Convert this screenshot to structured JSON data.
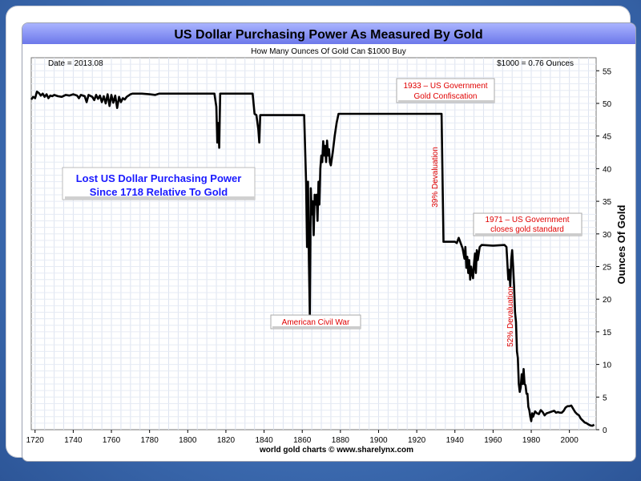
{
  "chart_data": {
    "type": "line",
    "title": "US Dollar Purchasing Power As Measured By Gold",
    "subtitle": "How Many Ounces Of Gold Can $1000 Buy",
    "date_label": "Date = 2013.08",
    "value_label": "$1000 = 0.76 Ounces",
    "ylabel": "Ounces Of Gold",
    "footer": "world gold charts © www.sharelynx.com",
    "xlim": [
      1718,
      2014
    ],
    "ylim": [
      0,
      57
    ],
    "xticks": [
      1720,
      1740,
      1760,
      1780,
      1800,
      1820,
      1840,
      1860,
      1880,
      1900,
      1920,
      1940,
      1960,
      1980,
      2000
    ],
    "yticks": [
      0,
      5,
      10,
      15,
      20,
      25,
      30,
      35,
      40,
      45,
      50,
      55
    ],
    "grid": true,
    "colors": {
      "line": "#000000",
      "title_bar": "#7a86f0",
      "annotation": "#e00000",
      "callout": "#1a1aff"
    },
    "callout": [
      "Lost US Dollar Purchasing Power",
      "Since 1718 Relative To Gold"
    ],
    "annotations": [
      {
        "id": "gold-confiscation",
        "lines": [
          "1933 – US Government",
          "Gold Confiscation"
        ]
      },
      {
        "id": "gold-standard",
        "lines": [
          "1971 – US Government",
          "closes gold standard"
        ]
      },
      {
        "id": "civil-war",
        "lines": [
          "American Civil War"
        ]
      },
      {
        "id": "devaluation-39",
        "lines": [
          "39% Devaluation"
        ]
      },
      {
        "id": "devaluation-52",
        "lines": [
          "52% Devaluation"
        ]
      }
    ],
    "series": [
      {
        "values": [
          [
            1718,
            50.6
          ],
          [
            1719,
            51.0
          ],
          [
            1720,
            50.8
          ],
          [
            1721,
            51.8
          ],
          [
            1722,
            51.6
          ],
          [
            1723,
            51.2
          ],
          [
            1724,
            51.5
          ],
          [
            1725,
            51.0
          ],
          [
            1726,
            51.4
          ],
          [
            1727,
            50.8
          ],
          [
            1728,
            51.2
          ],
          [
            1729,
            51.1
          ],
          [
            1730,
            51.3
          ],
          [
            1732,
            51.1
          ],
          [
            1734,
            51.0
          ],
          [
            1736,
            51.3
          ],
          [
            1738,
            51.2
          ],
          [
            1740,
            51.4
          ],
          [
            1742,
            51.2
          ],
          [
            1743,
            50.8
          ],
          [
            1744,
            51.3
          ],
          [
            1746,
            51.1
          ],
          [
            1747,
            50.2
          ],
          [
            1748,
            51.3
          ],
          [
            1750,
            51.0
          ],
          [
            1751,
            50.5
          ],
          [
            1752,
            51.3
          ],
          [
            1753,
            50.7
          ],
          [
            1754,
            51.2
          ],
          [
            1755,
            50.2
          ],
          [
            1756,
            51.1
          ],
          [
            1757,
            50.0
          ],
          [
            1758,
            51.4
          ],
          [
            1759,
            49.6
          ],
          [
            1760,
            51.3
          ],
          [
            1761,
            50.1
          ],
          [
            1762,
            51.2
          ],
          [
            1763,
            49.3
          ],
          [
            1764,
            51.0
          ],
          [
            1765,
            50.2
          ],
          [
            1766,
            50.8
          ],
          [
            1767,
            50.6
          ],
          [
            1768,
            51.0
          ],
          [
            1770,
            51.4
          ],
          [
            1771,
            51.5
          ],
          [
            1774,
            51.5
          ],
          [
            1776,
            51.5
          ],
          [
            1780,
            51.4
          ],
          [
            1783,
            51.3
          ],
          [
            1785,
            51.5
          ],
          [
            1790,
            51.5
          ],
          [
            1795,
            51.5
          ],
          [
            1800,
            51.5
          ],
          [
            1805,
            51.5
          ],
          [
            1810,
            51.5
          ],
          [
            1814,
            51.5
          ],
          [
            1815,
            49.5
          ],
          [
            1815.5,
            44.0
          ],
          [
            1816,
            47.0
          ],
          [
            1816.5,
            43.2
          ],
          [
            1817,
            51.5
          ],
          [
            1820,
            51.5
          ],
          [
            1825,
            51.5
          ],
          [
            1830,
            51.5
          ],
          [
            1834,
            51.5
          ],
          [
            1835,
            48.4
          ],
          [
            1836,
            48.2
          ],
          [
            1837,
            46.0
          ],
          [
            1837.5,
            44.0
          ],
          [
            1838,
            48.2
          ],
          [
            1840,
            48.2
          ],
          [
            1850,
            48.2
          ],
          [
            1860,
            48.2
          ],
          [
            1861,
            48.2
          ],
          [
            1862,
            38.0
          ],
          [
            1862.5,
            28.0
          ],
          [
            1863,
            38.0
          ],
          [
            1863.5,
            26.0
          ],
          [
            1864,
            17.3
          ],
          [
            1864.5,
            37.0
          ],
          [
            1865,
            33.0
          ],
          [
            1865.5,
            35.0
          ],
          [
            1866,
            29.8
          ],
          [
            1866.5,
            36.0
          ],
          [
            1867,
            34.5
          ],
          [
            1867.5,
            36.0
          ],
          [
            1868,
            32.0
          ],
          [
            1868.5,
            38.0
          ],
          [
            1869,
            34.5
          ],
          [
            1869.5,
            40.0
          ],
          [
            1870,
            42.0
          ],
          [
            1870.5,
            41.0
          ],
          [
            1871,
            44.2
          ],
          [
            1871.5,
            42.0
          ],
          [
            1872,
            43.5
          ],
          [
            1872.5,
            41.0
          ],
          [
            1873,
            44.3
          ],
          [
            1873.5,
            42.0
          ],
          [
            1874,
            43.0
          ],
          [
            1874.5,
            41.0
          ],
          [
            1875,
            40.5
          ],
          [
            1876,
            42.5
          ],
          [
            1877,
            45.0
          ],
          [
            1878,
            47.0
          ],
          [
            1879,
            48.4
          ],
          [
            1880,
            48.4
          ],
          [
            1890,
            48.4
          ],
          [
            1900,
            48.4
          ],
          [
            1910,
            48.4
          ],
          [
            1920,
            48.4
          ],
          [
            1930,
            48.4
          ],
          [
            1933,
            48.4
          ],
          [
            1934,
            28.8
          ],
          [
            1935,
            28.8
          ],
          [
            1940,
            28.8
          ],
          [
            1941,
            28.6
          ],
          [
            1942,
            29.4
          ],
          [
            1943,
            28.6
          ],
          [
            1944,
            27.8
          ],
          [
            1945,
            26.2
          ],
          [
            1945.5,
            28.0
          ],
          [
            1946,
            24.8
          ],
          [
            1946.5,
            26.5
          ],
          [
            1947,
            24.0
          ],
          [
            1947.5,
            26.0
          ],
          [
            1948,
            23.0
          ],
          [
            1948.5,
            25.0
          ],
          [
            1949,
            24.0
          ],
          [
            1949.5,
            23.2
          ],
          [
            1950,
            25.5
          ],
          [
            1950.5,
            27.0
          ],
          [
            1951,
            24.0
          ],
          [
            1951.5,
            27.5
          ],
          [
            1952,
            26.0
          ],
          [
            1953,
            28.0
          ],
          [
            1954,
            28.3
          ],
          [
            1960,
            28.2
          ],
          [
            1966,
            28.3
          ],
          [
            1967,
            28.0
          ],
          [
            1968,
            23.0
          ],
          [
            1968.5,
            24.5
          ],
          [
            1969,
            22.0
          ],
          [
            1969.5,
            26.0
          ],
          [
            1970,
            27.5
          ],
          [
            1970.5,
            25.0
          ],
          [
            1971,
            22.0
          ],
          [
            1971.5,
            18.0
          ],
          [
            1972,
            16.5
          ],
          [
            1972.5,
            12.0
          ],
          [
            1973,
            11.0
          ],
          [
            1973.5,
            7.0
          ],
          [
            1974,
            5.8
          ],
          [
            1974.5,
            6.5
          ],
          [
            1975,
            8.5
          ],
          [
            1975.5,
            7.0
          ],
          [
            1976,
            9.3
          ],
          [
            1976.5,
            7.0
          ],
          [
            1977,
            6.8
          ],
          [
            1977.5,
            5.5
          ],
          [
            1978,
            5.5
          ],
          [
            1978.5,
            3.5
          ],
          [
            1979,
            3.0
          ],
          [
            1979.5,
            2.0
          ],
          [
            1980,
            1.3
          ],
          [
            1980.5,
            2.5
          ],
          [
            1981,
            2.0
          ],
          [
            1982,
            2.8
          ],
          [
            1983,
            2.5
          ],
          [
            1984,
            2.4
          ],
          [
            1985,
            3.0
          ],
          [
            1986,
            2.7
          ],
          [
            1987,
            2.2
          ],
          [
            1988,
            2.5
          ],
          [
            1989,
            2.6
          ],
          [
            1990,
            2.7
          ],
          [
            1991,
            2.8
          ],
          [
            1992,
            2.9
          ],
          [
            1993,
            2.6
          ],
          [
            1994,
            2.7
          ],
          [
            1995,
            2.6
          ],
          [
            1996,
            2.6
          ],
          [
            1997,
            2.9
          ],
          [
            1998,
            3.4
          ],
          [
            1999,
            3.6
          ],
          [
            2000,
            3.6
          ],
          [
            2001,
            3.7
          ],
          [
            2002,
            3.2
          ],
          [
            2003,
            2.7
          ],
          [
            2004,
            2.4
          ],
          [
            2005,
            2.2
          ],
          [
            2006,
            1.7
          ],
          [
            2007,
            1.4
          ],
          [
            2008,
            1.1
          ],
          [
            2009,
            1.0
          ],
          [
            2010,
            0.8
          ],
          [
            2011,
            0.65
          ],
          [
            2012,
            0.6
          ],
          [
            2013,
            0.76
          ]
        ]
      }
    ]
  }
}
